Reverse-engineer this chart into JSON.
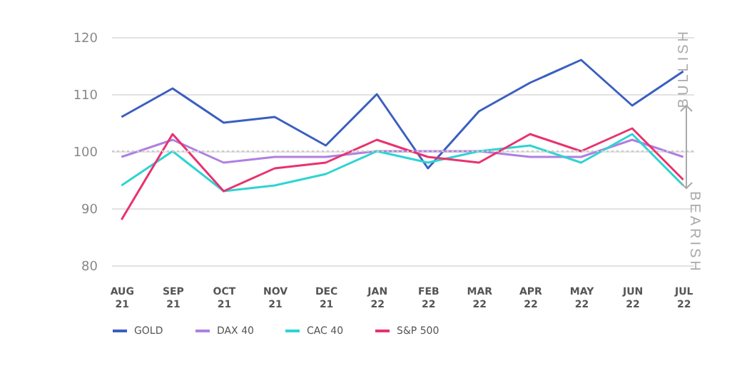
{
  "chart_data": {
    "type": "line",
    "categories": [
      "AUG 21",
      "SEP 21",
      "OCT 21",
      "NOV 21",
      "DEC 21",
      "JAN 22",
      "FEB 22",
      "MAR 22",
      "APR 22",
      "MAY 22",
      "JUN 22",
      "JUL 22"
    ],
    "series": [
      {
        "name": "GOLD",
        "color": "#3a5fbf",
        "values": [
          106,
          111,
          105,
          106,
          101,
          110,
          97,
          107,
          112,
          116,
          108,
          114
        ]
      },
      {
        "name": "DAX 40",
        "color": "#b07fe0",
        "values": [
          99,
          102,
          98,
          99,
          99,
          100,
          100,
          100,
          99,
          99,
          102,
          99
        ]
      },
      {
        "name": "CAC 40",
        "color": "#2fd3d3",
        "values": [
          94,
          100,
          93,
          94,
          96,
          100,
          98,
          100,
          101,
          98,
          103,
          94
        ]
      },
      {
        "name": "S&P 500",
        "color": "#e8326e",
        "values": [
          88,
          103,
          93,
          97,
          98,
          102,
          99,
          98,
          103,
          100,
          104,
          95
        ]
      }
    ],
    "ylim": [
      80,
      120
    ],
    "yticks": [
      80,
      90,
      100,
      110,
      120
    ],
    "grid": "y",
    "legend": "bottom",
    "marker": "none",
    "line_style": "solid",
    "ref_lines": [
      {
        "axis": "y",
        "value": 100,
        "line_style": "dotted",
        "color": "#cccccc"
      }
    ],
    "annotations": [
      "BULLISH",
      "BEARISH"
    ]
  }
}
